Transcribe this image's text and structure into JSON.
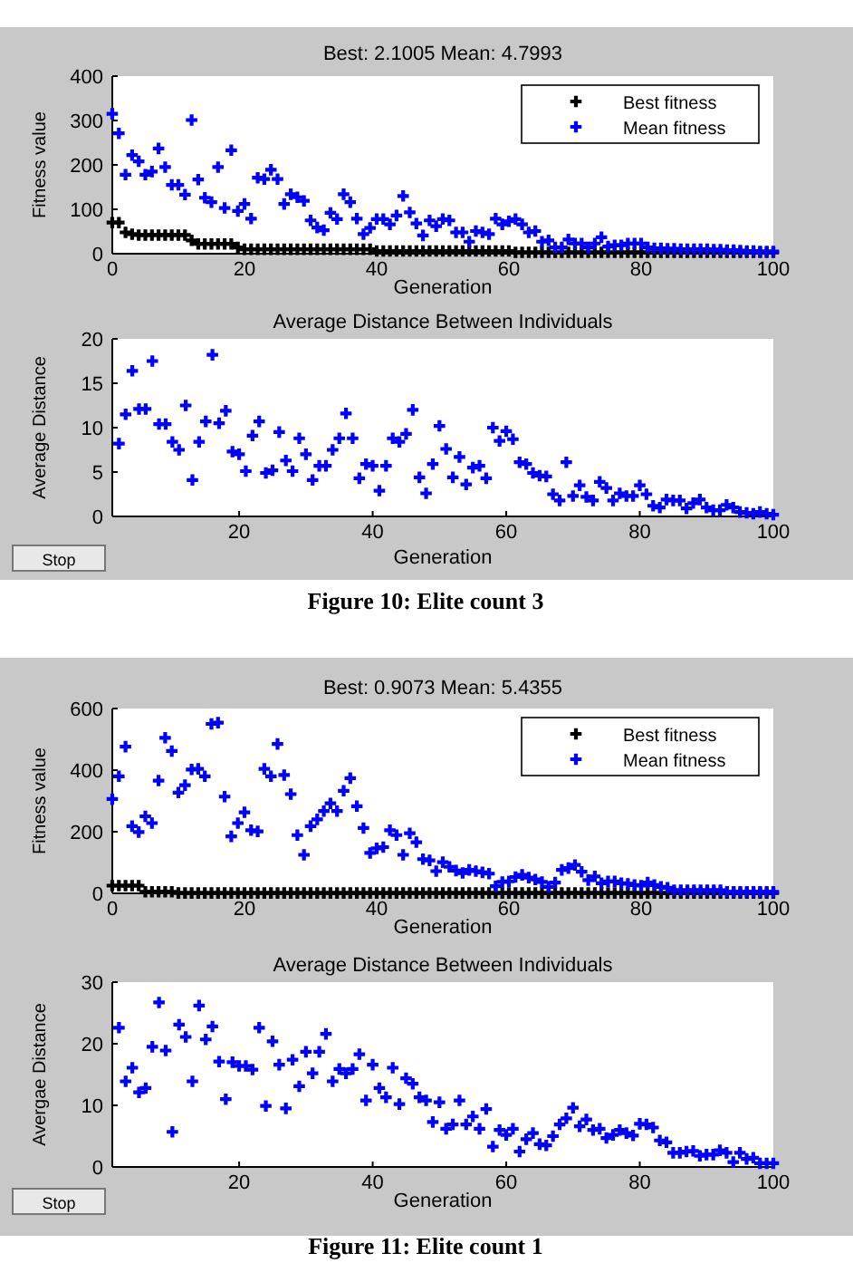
{
  "chart_data": [
    {
      "type": "scatter",
      "title": "Best: 2.1005 Mean: 4.7993",
      "xlabel": "Generation",
      "ylabel": "Fitness value",
      "xlim": [
        0,
        100
      ],
      "xticks": [
        0,
        20,
        40,
        60,
        80,
        100
      ],
      "ylim": [
        0,
        400
      ],
      "yticks": [
        0,
        100,
        200,
        300,
        400
      ],
      "legend": "top right",
      "marker": "cross",
      "x": [
        0,
        1,
        2,
        3,
        4,
        5,
        6,
        7,
        8,
        9,
        10,
        11,
        12,
        13,
        14,
        15,
        16,
        17,
        18,
        19,
        20,
        21,
        22,
        23,
        24,
        25,
        26,
        27,
        28,
        29,
        30,
        31,
        32,
        33,
        34,
        35,
        36,
        37,
        38,
        39,
        40,
        41,
        42,
        43,
        44,
        45,
        46,
        47,
        48,
        49,
        50,
        51,
        52,
        53,
        54,
        55,
        56,
        57,
        58,
        59,
        60,
        61,
        62,
        63,
        64,
        65,
        66,
        67,
        68,
        69,
        70,
        71,
        72,
        73,
        74,
        75,
        76,
        77,
        78,
        79,
        80,
        81,
        82,
        83,
        84,
        85,
        86,
        87,
        88,
        89,
        90,
        91,
        92,
        93,
        94,
        95,
        96,
        97,
        98,
        99,
        100
      ],
      "series": [
        {
          "name": "Best fitness",
          "color": "#000000",
          "values": [
            70,
            70,
            48,
            44,
            42,
            42,
            42,
            42,
            42,
            42,
            42,
            42,
            30,
            22,
            22,
            22,
            22,
            22,
            22,
            14,
            10,
            10,
            10,
            10,
            10,
            10,
            10,
            10,
            10,
            10,
            10,
            10,
            10,
            10,
            10,
            10,
            10,
            10,
            10,
            10,
            6,
            6,
            6,
            6,
            6,
            6,
            6,
            6,
            6,
            6,
            6,
            6,
            6,
            6,
            6,
            6,
            6,
            6,
            6,
            6,
            6,
            3,
            3,
            3,
            3,
            3,
            3,
            3,
            3,
            3,
            3,
            3,
            3,
            3,
            3,
            3,
            3,
            3,
            3,
            3,
            3,
            3,
            3,
            3,
            3,
            3,
            3,
            3,
            3,
            3,
            3,
            3,
            3,
            3,
            3,
            3,
            3,
            3,
            3,
            3,
            3
          ]
        },
        {
          "name": "Mean fitness",
          "color": "#0000ff",
          "values": [
            315,
            271,
            178,
            222,
            208,
            178,
            185,
            237,
            195,
            155,
            155,
            133,
            301,
            167,
            126,
            116,
            195,
            103,
            233,
            96,
            112,
            79,
            171,
            168,
            189,
            168,
            112,
            134,
            127,
            119,
            75,
            59,
            53,
            92,
            78,
            134,
            116,
            79,
            44,
            58,
            78,
            78,
            66,
            86,
            130,
            93,
            68,
            41,
            75,
            62,
            78,
            75,
            48,
            48,
            27,
            51,
            48,
            44,
            79,
            66,
            73,
            78,
            66,
            48,
            51,
            27,
            30,
            14,
            14,
            32,
            23,
            23,
            14,
            23,
            37,
            16,
            19,
            19,
            23,
            23,
            23,
            14,
            12,
            12,
            11,
            11,
            10,
            10,
            10,
            10,
            10,
            9,
            9,
            8,
            8,
            7,
            6,
            6,
            5,
            5,
            5
          ]
        }
      ]
    },
    {
      "type": "scatter",
      "title": "Average Distance Between Individuals",
      "xlabel": "Generation",
      "ylabel": "Average Distance",
      "xlim": [
        1,
        100
      ],
      "xticks": [
        20,
        40,
        60,
        80,
        100
      ],
      "ylim": [
        0,
        20
      ],
      "yticks": [
        0,
        5,
        10,
        15,
        20
      ],
      "marker": "cross",
      "annotations": [
        "Stop",
        "Figure 10: Elite count 3"
      ],
      "x": [
        2,
        3,
        4,
        5,
        6,
        7,
        8,
        9,
        10,
        11,
        12,
        13,
        14,
        15,
        16,
        17,
        18,
        19,
        20,
        21,
        22,
        23,
        24,
        25,
        26,
        27,
        28,
        29,
        30,
        31,
        32,
        33,
        34,
        35,
        36,
        37,
        38,
        39,
        40,
        41,
        42,
        43,
        44,
        45,
        46,
        47,
        48,
        49,
        50,
        51,
        52,
        53,
        54,
        55,
        56,
        57,
        58,
        59,
        60,
        61,
        62,
        63,
        64,
        65,
        66,
        67,
        68,
        69,
        70,
        71,
        72,
        73,
        74,
        75,
        76,
        77,
        78,
        79,
        80,
        81,
        82,
        83,
        84,
        85,
        86,
        87,
        88,
        89,
        90,
        91,
        92,
        93,
        94,
        95,
        96,
        97,
        98,
        99,
        100
      ],
      "series": [
        {
          "color": "#0000ff",
          "values": [
            8.2,
            11.5,
            16.4,
            12.1,
            12.1,
            17.5,
            10.4,
            10.4,
            8.4,
            7.5,
            12.5,
            4.1,
            8.4,
            10.7,
            18.2,
            10.5,
            11.9,
            7.3,
            7.0,
            5.1,
            9.1,
            10.7,
            4.9,
            5.2,
            9.5,
            6.3,
            5.1,
            8.8,
            7.0,
            4.1,
            5.7,
            5.7,
            7.5,
            8.8,
            11.6,
            8.8,
            4.3,
            5.9,
            5.7,
            2.9,
            5.7,
            8.8,
            8.4,
            9.3,
            12.0,
            4.4,
            2.6,
            5.9,
            10.2,
            7.6,
            4.4,
            6.7,
            3.6,
            5.5,
            5.7,
            4.3,
            10.0,
            8.5,
            9.6,
            8.7,
            6.1,
            5.9,
            4.9,
            4.6,
            4.5,
            2.5,
            1.8,
            6.1,
            2.3,
            3.5,
            2.2,
            1.8,
            3.9,
            3.2,
            1.8,
            2.6,
            2.3,
            2.3,
            3.5,
            2.5,
            1.2,
            1.0,
            1.9,
            1.8,
            1.8,
            0.9,
            1.5,
            1.9,
            1.0,
            0.7,
            0.7,
            1.3,
            1.0,
            0.5,
            0.4,
            0.3,
            0.5,
            0.3,
            0.2
          ]
        }
      ]
    },
    {
      "type": "scatter",
      "title": "Best: 0.9073 Mean: 5.4355",
      "xlabel": "Generation",
      "ylabel": "Fitness value",
      "xlim": [
        0,
        100
      ],
      "xticks": [
        0,
        20,
        40,
        60,
        80,
        100
      ],
      "ylim": [
        0,
        600
      ],
      "yticks": [
        0,
        200,
        400,
        600
      ],
      "legend": "top right",
      "marker": "cross",
      "x": [
        0,
        1,
        2,
        3,
        4,
        5,
        6,
        7,
        8,
        9,
        10,
        11,
        12,
        13,
        14,
        15,
        16,
        17,
        18,
        19,
        20,
        21,
        22,
        23,
        24,
        25,
        26,
        27,
        28,
        29,
        30,
        31,
        32,
        33,
        34,
        35,
        36,
        37,
        38,
        39,
        40,
        41,
        42,
        43,
        44,
        45,
        46,
        47,
        48,
        49,
        50,
        51,
        52,
        53,
        54,
        55,
        56,
        57,
        58,
        59,
        60,
        61,
        62,
        63,
        64,
        65,
        66,
        67,
        68,
        69,
        70,
        71,
        72,
        73,
        74,
        75,
        76,
        77,
        78,
        79,
        80,
        81,
        82,
        83,
        84,
        85,
        86,
        87,
        88,
        89,
        90,
        91,
        92,
        93,
        94,
        95,
        96,
        97,
        98,
        99,
        100
      ],
      "series": [
        {
          "name": "Best fitness",
          "color": "#000000",
          "values": [
            25,
            25,
            25,
            25,
            25,
            5,
            5,
            5,
            5,
            5,
            1,
            1,
            1,
            1,
            1,
            1,
            1,
            1,
            1,
            1,
            1,
            1,
            1,
            1,
            1,
            1,
            1,
            1,
            1,
            1,
            1,
            1,
            1,
            1,
            1,
            1,
            1,
            1,
            1,
            1,
            1,
            1,
            1,
            1,
            1,
            1,
            1,
            1,
            1,
            1,
            1,
            1,
            1,
            1,
            1,
            1,
            1,
            1,
            1,
            1,
            1,
            1,
            1,
            1,
            1,
            1,
            1,
            1,
            1,
            1,
            1,
            1,
            1,
            1,
            1,
            1,
            1,
            1,
            1,
            1,
            1,
            1,
            1,
            1,
            1,
            1,
            1,
            1,
            1,
            1,
            1,
            1,
            1,
            1,
            1,
            1,
            1,
            1,
            1,
            1,
            1
          ]
        },
        {
          "name": "Mean fitness",
          "color": "#0000ff",
          "values": [
            306,
            380,
            476,
            218,
            199,
            250,
            228,
            366,
            505,
            462,
            327,
            351,
            402,
            404,
            380,
            550,
            554,
            314,
            185,
            228,
            263,
            205,
            201,
            404,
            380,
            485,
            384,
            322,
            189,
            125,
            218,
            240,
            267,
            292,
            267,
            333,
            374,
            283,
            212,
            131,
            146,
            150,
            205,
            189,
            125,
            195,
            166,
            111,
            107,
            72,
            101,
            86,
            74,
            66,
            76,
            72,
            68,
            64,
            23,
            37,
            39,
            53,
            60,
            51,
            45,
            37,
            21,
            35,
            76,
            82,
            92,
            70,
            43,
            55,
            33,
            39,
            39,
            33,
            31,
            27,
            25,
            35,
            27,
            21,
            18,
            10,
            10,
            10,
            10,
            10,
            10,
            10,
            10,
            5,
            5,
            5,
            5,
            5,
            5,
            5,
            5
          ]
        }
      ]
    },
    {
      "type": "scatter",
      "title": "Average Distance Between Individuals",
      "xlabel": "Generation",
      "ylabel": "Avergae Distance",
      "xlim": [
        1,
        100
      ],
      "xticks": [
        20,
        40,
        60,
        80,
        100
      ],
      "ylim": [
        0,
        30
      ],
      "yticks": [
        0,
        10,
        20,
        30
      ],
      "marker": "cross",
      "annotations": [
        "Stop",
        "Figure 11: Elite count 1"
      ],
      "x": [
        2,
        3,
        4,
        5,
        6,
        7,
        8,
        9,
        10,
        11,
        12,
        13,
        14,
        15,
        16,
        17,
        18,
        19,
        20,
        21,
        22,
        23,
        24,
        25,
        26,
        27,
        28,
        29,
        30,
        31,
        32,
        33,
        34,
        35,
        36,
        37,
        38,
        39,
        40,
        41,
        42,
        43,
        44,
        45,
        46,
        47,
        48,
        49,
        50,
        51,
        52,
        53,
        54,
        55,
        56,
        57,
        58,
        59,
        60,
        61,
        62,
        63,
        64,
        65,
        66,
        67,
        68,
        69,
        70,
        71,
        72,
        73,
        74,
        75,
        76,
        77,
        78,
        79,
        80,
        81,
        82,
        83,
        84,
        85,
        86,
        87,
        88,
        89,
        90,
        91,
        92,
        93,
        94,
        95,
        96,
        97,
        98,
        99,
        100
      ],
      "series": [
        {
          "color": "#0000ff",
          "values": [
            22.6,
            13.9,
            16.1,
            12.1,
            12.8,
            19.5,
            26.7,
            18.9,
            5.7,
            23.1,
            21.1,
            13.9,
            26.2,
            20.7,
            22.8,
            17.1,
            11.0,
            17.0,
            16.4,
            16.4,
            15.8,
            22.6,
            9.9,
            20.4,
            16.6,
            9.5,
            17.4,
            13.1,
            18.7,
            15.2,
            18.7,
            21.6,
            13.9,
            15.9,
            15.2,
            15.9,
            18.3,
            10.8,
            16.6,
            12.8,
            11.3,
            16.1,
            10.2,
            14.4,
            13.5,
            11.3,
            10.8,
            7.3,
            10.5,
            6.2,
            6.9,
            10.8,
            6.9,
            8.2,
            6.2,
            9.4,
            3.3,
            6.0,
            5.2,
            6.2,
            2.5,
            4.5,
            5.5,
            3.7,
            3.5,
            5.0,
            6.9,
            7.9,
            9.6,
            6.6,
            7.7,
            6.0,
            6.2,
            4.7,
            5.2,
            6.0,
            5.5,
            5.1,
            7.0,
            6.9,
            6.4,
            4.3,
            4.0,
            2.3,
            2.3,
            2.5,
            2.6,
            1.8,
            2.0,
            2.0,
            2.7,
            2.3,
            0.8,
            2.3,
            1.3,
            1.5,
            0.6,
            0.6,
            0.6
          ]
        }
      ]
    }
  ]
}
